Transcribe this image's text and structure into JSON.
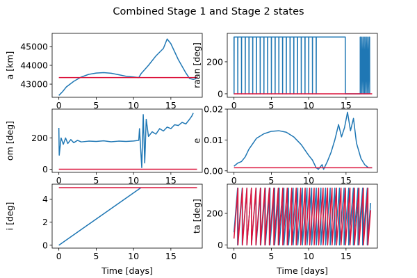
{
  "title": "Combined Stage 1 and Stage 2 states",
  "colors": {
    "series1": "#1f77b4",
    "series2": "#dc143c"
  },
  "chart_data": [
    {
      "type": "line",
      "id": "a",
      "ylabel": "a [km]",
      "xlabel": "",
      "xlim": [
        -0.9,
        19.2
      ],
      "ylim": [
        42300,
        45700
      ],
      "xticks": [
        0,
        5,
        10,
        15
      ],
      "yticks": [
        43000,
        44000,
        45000
      ],
      "series": [
        {
          "values": [
            [
              0,
              42400
            ],
            [
              0.5,
              42600
            ],
            [
              1,
              42850
            ],
            [
              2,
              43150
            ],
            [
              3,
              43380
            ],
            [
              4,
              43520
            ],
            [
              5,
              43590
            ],
            [
              6,
              43610
            ],
            [
              7,
              43580
            ],
            [
              8,
              43500
            ],
            [
              9,
              43420
            ],
            [
              10,
              43380
            ],
            [
              10.7,
              43350
            ],
            [
              11,
              43550
            ],
            [
              12,
              44000
            ],
            [
              13,
              44500
            ],
            [
              14,
              44900
            ],
            [
              14.5,
              45400
            ],
            [
              15,
              45150
            ],
            [
              16,
              44300
            ],
            [
              17,
              43600
            ],
            [
              17.5,
              43300
            ],
            [
              18,
              43250
            ],
            [
              18.5,
              43300
            ]
          ]
        },
        {
          "values": [
            [
              0,
              43350
            ],
            [
              18.5,
              43350
            ]
          ]
        }
      ]
    },
    {
      "type": "line",
      "id": "raan",
      "ylabel": "raan [deg]",
      "xlabel": "",
      "xlim": [
        -0.9,
        19.2
      ],
      "ylim": [
        -22,
        378
      ],
      "xticks": [
        0,
        5,
        10,
        15
      ],
      "yticks": [
        0,
        200
      ],
      "series": [
        {
          "values": [],
          "pattern": {
            "low": 0,
            "high": 355,
            "dense_segments": [
              [
                0,
                11.2,
                0.5
              ],
              [
                16.9,
                18.2,
                0.18
              ]
            ],
            "flat_segment": [
              11.2,
              14.9
            ]
          }
        },
        {
          "values": [
            [
              0,
              0
            ],
            [
              18.5,
              0
            ]
          ]
        }
      ]
    },
    {
      "type": "line",
      "id": "om",
      "ylabel": "om [deg]",
      "xlabel": "",
      "xlim": [
        -0.9,
        19.2
      ],
      "ylim": [
        -20,
        385
      ],
      "xticks": [
        0,
        5,
        10,
        15
      ],
      "yticks": [
        0,
        200
      ],
      "series": [
        {
          "values": [
            [
              0,
              265
            ],
            [
              0.05,
              90
            ],
            [
              0.3,
              200
            ],
            [
              0.6,
              160
            ],
            [
              0.9,
              200
            ],
            [
              1.2,
              165
            ],
            [
              1.6,
              190
            ],
            [
              2,
              170
            ],
            [
              2.5,
              185
            ],
            [
              3,
              175
            ],
            [
              4,
              180
            ],
            [
              5,
              178
            ],
            [
              6,
              182
            ],
            [
              7,
              176
            ],
            [
              8,
              180
            ],
            [
              9,
              178
            ],
            [
              10,
              181
            ],
            [
              10.7,
              185
            ],
            [
              10.8,
              260
            ],
            [
              11.1,
              10
            ],
            [
              11.3,
              350
            ],
            [
              11.5,
              40
            ],
            [
              11.7,
              320
            ],
            [
              12,
              210
            ],
            [
              12.5,
              240
            ],
            [
              13,
              225
            ],
            [
              13.5,
              260
            ],
            [
              14,
              245
            ],
            [
              14.5,
              270
            ],
            [
              15,
              260
            ],
            [
              15.5,
              285
            ],
            [
              16,
              280
            ],
            [
              16.5,
              300
            ],
            [
              17,
              290
            ],
            [
              17.5,
              320
            ],
            [
              17.8,
              340
            ],
            [
              18,
              360
            ]
          ]
        },
        {
          "values": [
            [
              0,
              0
            ],
            [
              18.5,
              0
            ]
          ]
        }
      ]
    },
    {
      "type": "line",
      "id": "e",
      "ylabel": "e",
      "xlabel": "",
      "xlim": [
        -0.9,
        19.2
      ],
      "ylim": [
        -0.0005,
        0.02
      ],
      "xticks": [
        0,
        5,
        10,
        15
      ],
      "yticks": [
        0.0,
        0.01,
        0.02
      ],
      "ytick_labels": [
        "0.00",
        "0.01",
        "0.02"
      ],
      "series": [
        {
          "values": [
            [
              0,
              0.0015
            ],
            [
              0.5,
              0.0025
            ],
            [
              1,
              0.003
            ],
            [
              1.5,
              0.0045
            ],
            [
              2,
              0.007
            ],
            [
              3,
              0.0105
            ],
            [
              4,
              0.012
            ],
            [
              5,
              0.0128
            ],
            [
              6,
              0.013
            ],
            [
              7,
              0.0125
            ],
            [
              8,
              0.011
            ],
            [
              9,
              0.0085
            ],
            [
              10,
              0.005
            ],
            [
              10.5,
              0.0035
            ],
            [
              11,
              0.001
            ],
            [
              11.3,
              0.0005
            ],
            [
              11.8,
              0.002
            ],
            [
              12,
              0.0005
            ],
            [
              12.5,
              0.003
            ],
            [
              13,
              0.006
            ],
            [
              13.5,
              0.01
            ],
            [
              14,
              0.015
            ],
            [
              14.4,
              0.011
            ],
            [
              14.8,
              0.014
            ],
            [
              15.2,
              0.019
            ],
            [
              15.6,
              0.013
            ],
            [
              16,
              0.017
            ],
            [
              16.4,
              0.009
            ],
            [
              17,
              0.004
            ],
            [
              17.5,
              0.002
            ],
            [
              18,
              0.001
            ],
            [
              18.5,
              0.001
            ]
          ]
        },
        {
          "values": [
            [
              0,
              0.001
            ],
            [
              18.5,
              0.001
            ]
          ]
        }
      ]
    },
    {
      "type": "line",
      "id": "i",
      "ylabel": "i [deg]",
      "xlabel": "Time [days]",
      "xlim": [
        -0.9,
        19.2
      ],
      "ylim": [
        -0.25,
        5.3
      ],
      "xticks": [
        0,
        5,
        10,
        15
      ],
      "yticks": [
        0,
        2,
        4
      ],
      "series": [
        {
          "values": [
            [
              0,
              0
            ],
            [
              11,
              5
            ]
          ]
        },
        {
          "values": [
            [
              0,
              5
            ],
            [
              18.5,
              5
            ]
          ]
        }
      ]
    },
    {
      "type": "line",
      "id": "ta",
      "ylabel": "ta [deg]",
      "xlabel": "Time [days]",
      "xlim": [
        -0.9,
        19.2
      ],
      "ylim": [
        -20,
        385
      ],
      "xticks": [
        0,
        5,
        10,
        15
      ],
      "yticks": [
        0,
        200
      ],
      "series": [
        {
          "values": [],
          "pattern": {
            "low": 0,
            "high": 360,
            "start": 80,
            "start_x": 0,
            "end_x": 18.3,
            "period": 0.62
          }
        },
        {
          "values": [],
          "pattern": {
            "low": 0,
            "high": 360,
            "start": 40,
            "start_x": 0,
            "end_x": 18.3,
            "period": 0.6
          }
        }
      ]
    }
  ]
}
